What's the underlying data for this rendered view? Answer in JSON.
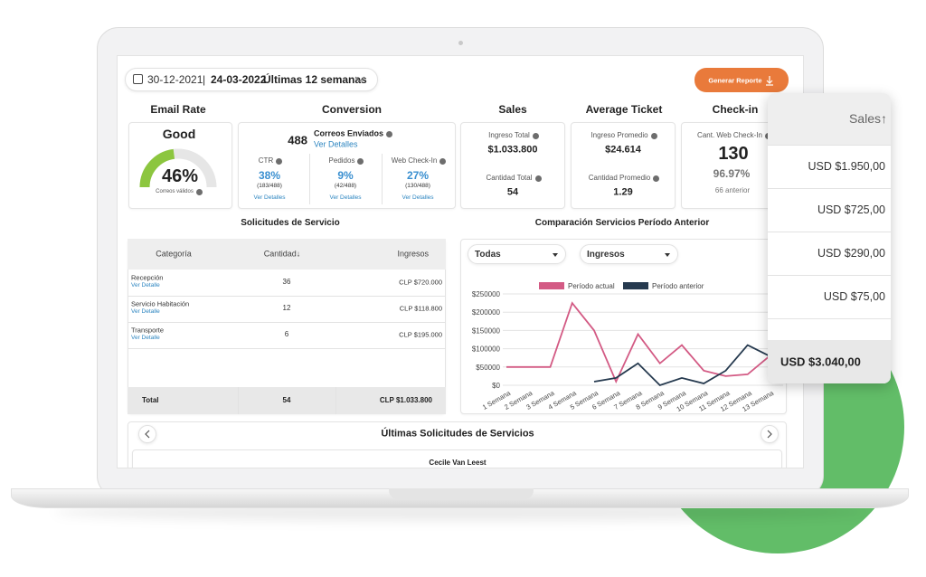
{
  "header": {
    "date_from": "30-12-2021",
    "separator": "|",
    "date_to": "24-03-2022",
    "period": "Últimas 12 semanas",
    "button": "Generar Reporte"
  },
  "email_rate": {
    "title": "Email Rate",
    "status": "Good",
    "gauge": {
      "value": 46,
      "label": "46%",
      "color": "#8cc63f"
    },
    "note": "Correos válidos"
  },
  "conversion": {
    "title": "Conversion",
    "count": "488",
    "label": "Correos Enviados",
    "link": "Ver Detalles",
    "metrics": [
      {
        "label": "CTR",
        "value": "38%",
        "detail": "(183/488)",
        "link": "Ver Detalles"
      },
      {
        "label": "Pedidos",
        "value": "9%",
        "detail": "(42/488)",
        "link": "Ver Detalles"
      },
      {
        "label": "Web Check-In",
        "value": "27%",
        "detail": "(130/488)",
        "link": "Ver Detalles"
      }
    ]
  },
  "sales": {
    "title": "Sales",
    "items": [
      {
        "label": "Ingreso Total",
        "value": "$1.033.800"
      },
      {
        "label": "Cantidad Total",
        "value": "54"
      }
    ]
  },
  "average_ticket": {
    "title": "Average Ticket",
    "items": [
      {
        "label": "Ingreso Promedio",
        "value": "$24.614"
      },
      {
        "label": "Cantidad Promedio",
        "value": "1.29"
      }
    ]
  },
  "check_in": {
    "title": "Check-in",
    "label": "Cant. Web Check-In",
    "value": "130",
    "percent": "96.97%",
    "previous": "66 anterior"
  },
  "services_table": {
    "title": "Solicitudes de Servicio",
    "columns": [
      "Categoría",
      "Cantidad↓",
      "Ingresos"
    ],
    "rows": [
      {
        "category": "Recepción",
        "link": "Ver Detalle",
        "quantity": "36",
        "revenue": "CLP $720.000"
      },
      {
        "category": "Servicio Habitación",
        "link": "Ver Detalle",
        "quantity": "12",
        "revenue": "CLP $118.800"
      },
      {
        "category": "Transporte",
        "link": "Ver Detalle",
        "quantity": "6",
        "revenue": "CLP $195.000"
      }
    ],
    "total": {
      "label": "Total",
      "quantity": "54",
      "revenue": "CLP $1.033.800"
    }
  },
  "comparison": {
    "title": "Comparación Servicios Período Anterior",
    "filters": [
      "Todas",
      "Ingresos"
    ]
  },
  "chart_data": {
    "type": "line",
    "categories": [
      "1 Semana",
      "2 Semana",
      "3 Semana",
      "4 Semana",
      "5 Semana",
      "6 Semana",
      "7 Semana",
      "8 Semana",
      "9 Semana",
      "10 Semana",
      "11 Semana",
      "12 Semana",
      "13 Semana"
    ],
    "series": [
      {
        "name": "Período actual",
        "color": "#d35a84",
        "values": [
          50000,
          50000,
          50000,
          225000,
          150000,
          10000,
          140000,
          60000,
          110000,
          40000,
          25000,
          30000,
          80000
        ]
      },
      {
        "name": "Período anterior",
        "color": "#263a4f",
        "values": [
          null,
          null,
          null,
          null,
          10000,
          20000,
          60000,
          0,
          20000,
          5000,
          40000,
          110000,
          80000
        ]
      }
    ],
    "ylim": [
      0,
      250000
    ],
    "yticks": [
      {
        "value": 0,
        "label": "$0"
      },
      {
        "value": 50000,
        "label": "$50000"
      },
      {
        "value": 100000,
        "label": "$100000"
      },
      {
        "value": 150000,
        "label": "$150000"
      },
      {
        "value": 200000,
        "label": "$200000"
      },
      {
        "value": 250000,
        "label": "$250000"
      }
    ],
    "grid": true
  },
  "recent": {
    "title": "Últimas Solicitudes de Servicios",
    "first_row": "Cecile Van Leest"
  },
  "sales_popover": {
    "header": "Sales↑",
    "rows": [
      "USD $1.950,00",
      "USD $725,00",
      "USD $290,00",
      "USD $75,00"
    ],
    "total": "USD $3.040,00"
  }
}
